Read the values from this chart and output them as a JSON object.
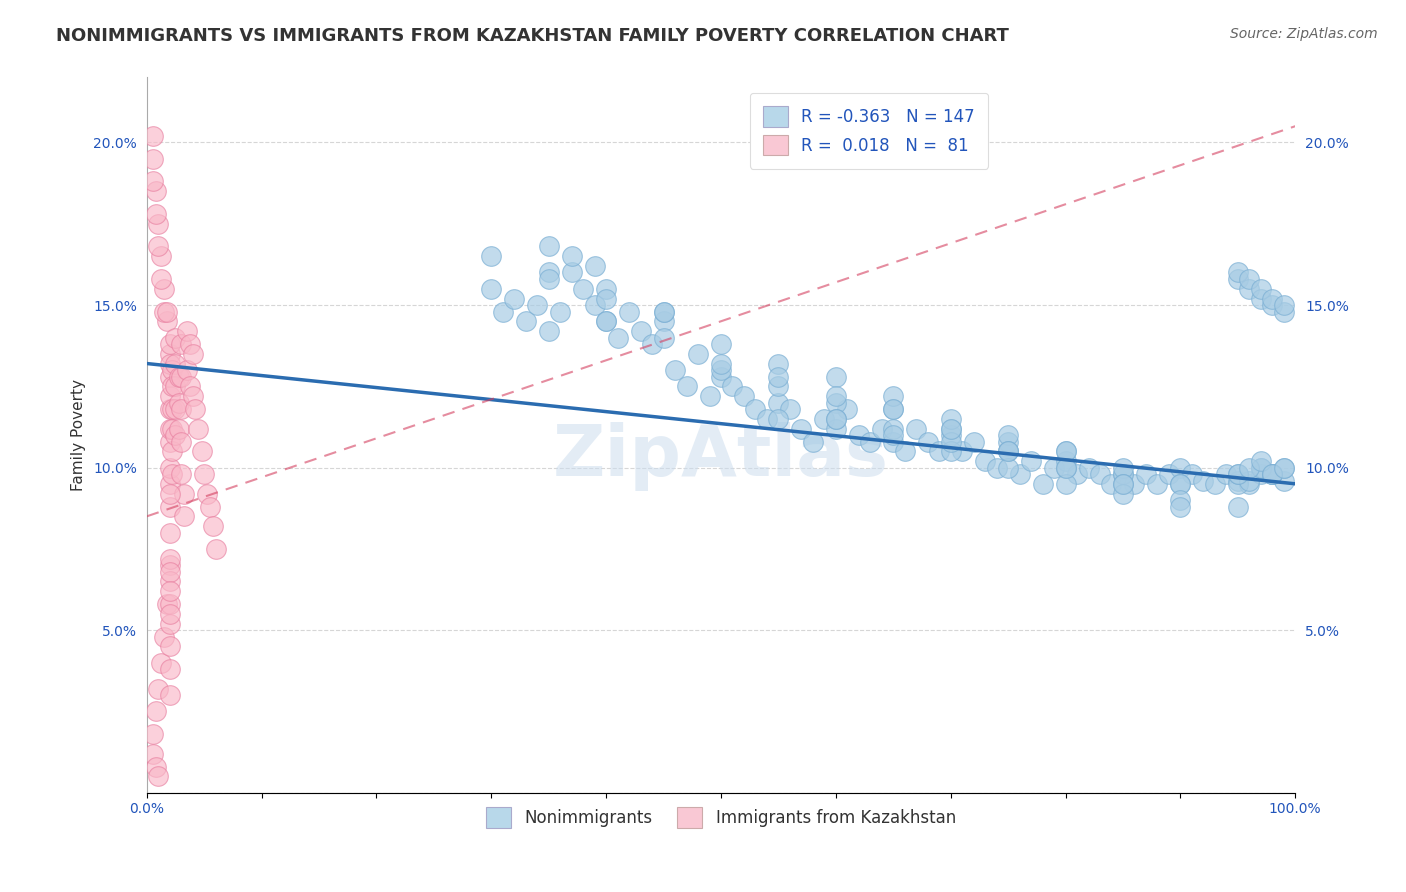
{
  "title": "NONIMMIGRANTS VS IMMIGRANTS FROM KAZAKHSTAN FAMILY POVERTY CORRELATION CHART",
  "source": "Source: ZipAtlas.com",
  "ylabel": "Family Poverty",
  "xlim": [
    0,
    1.0
  ],
  "ylim": [
    0,
    0.22
  ],
  "xticks": [
    0.0,
    0.1,
    0.2,
    0.3,
    0.4,
    0.5,
    0.6,
    0.7,
    0.8,
    0.9,
    1.0
  ],
  "xticklabels": [
    "0.0%",
    "",
    "",
    "",
    "",
    "",
    "",
    "",
    "",
    "",
    "100.0%"
  ],
  "yticks": [
    0.0,
    0.05,
    0.1,
    0.15,
    0.2
  ],
  "yticklabels": [
    "",
    "5.0%",
    "10.0%",
    "15.0%",
    "20.0%"
  ],
  "r_nonimm": -0.363,
  "n_nonimm": 147,
  "r_imm": 0.018,
  "n_imm": 81,
  "blue_color": "#a8cce4",
  "blue_edge_color": "#7bafd4",
  "blue_line_color": "#2b6cb0",
  "pink_color": "#f9b8c8",
  "pink_edge_color": "#e87fa0",
  "pink_line_color": "#d44060",
  "legend_blue_face": "#b8d8ea",
  "legend_pink_face": "#f9c8d4",
  "watermark": "ZipAtlas",
  "nonimm_x": [
    0.3,
    0.31,
    0.32,
    0.33,
    0.34,
    0.35,
    0.36,
    0.37,
    0.38,
    0.39,
    0.4,
    0.41,
    0.42,
    0.43,
    0.44,
    0.45,
    0.46,
    0.47,
    0.48,
    0.49,
    0.5,
    0.51,
    0.52,
    0.53,
    0.54,
    0.55,
    0.56,
    0.57,
    0.58,
    0.59,
    0.6,
    0.61,
    0.62,
    0.63,
    0.64,
    0.65,
    0.66,
    0.67,
    0.68,
    0.69,
    0.7,
    0.71,
    0.72,
    0.73,
    0.74,
    0.75,
    0.76,
    0.77,
    0.78,
    0.79,
    0.8,
    0.81,
    0.82,
    0.83,
    0.84,
    0.85,
    0.86,
    0.87,
    0.88,
    0.89,
    0.9,
    0.91,
    0.92,
    0.93,
    0.94,
    0.95,
    0.96,
    0.97,
    0.98,
    0.99,
    0.35,
    0.4,
    0.45,
    0.5,
    0.55,
    0.6,
    0.65,
    0.7,
    0.75,
    0.8,
    0.85,
    0.9,
    0.95,
    0.97,
    0.98,
    0.99,
    0.95,
    0.96,
    0.97,
    0.98,
    0.3,
    0.35,
    0.4,
    0.45,
    0.5,
    0.55,
    0.6,
    0.65,
    0.7,
    0.75,
    0.8,
    0.85,
    0.9,
    0.55,
    0.6,
    0.65,
    0.7,
    0.75,
    0.8,
    0.85,
    0.6,
    0.65,
    0.7,
    0.75,
    0.8,
    0.85,
    0.9,
    0.95,
    0.4,
    0.45,
    0.5,
    0.55,
    0.6,
    0.65,
    0.7,
    0.75,
    0.8,
    0.85,
    0.9,
    0.95,
    0.96,
    0.97,
    0.98,
    0.99,
    0.95,
    0.96,
    0.97,
    0.98,
    0.99,
    0.95,
    0.96,
    0.97,
    0.98,
    0.99,
    0.35,
    0.37,
    0.39
  ],
  "nonimm_y": [
    0.155,
    0.148,
    0.152,
    0.145,
    0.15,
    0.142,
    0.148,
    0.16,
    0.155,
    0.15,
    0.145,
    0.14,
    0.148,
    0.142,
    0.138,
    0.145,
    0.13,
    0.125,
    0.135,
    0.122,
    0.128,
    0.125,
    0.122,
    0.118,
    0.115,
    0.12,
    0.118,
    0.112,
    0.108,
    0.115,
    0.112,
    0.118,
    0.11,
    0.108,
    0.112,
    0.108,
    0.105,
    0.112,
    0.108,
    0.105,
    0.11,
    0.105,
    0.108,
    0.102,
    0.1,
    0.105,
    0.098,
    0.102,
    0.095,
    0.1,
    0.102,
    0.098,
    0.1,
    0.098,
    0.095,
    0.098,
    0.095,
    0.098,
    0.095,
    0.098,
    0.1,
    0.098,
    0.096,
    0.095,
    0.098,
    0.096,
    0.095,
    0.098,
    0.098,
    0.096,
    0.16,
    0.155,
    0.148,
    0.13,
    0.125,
    0.12,
    0.118,
    0.112,
    0.108,
    0.105,
    0.098,
    0.095,
    0.095,
    0.1,
    0.098,
    0.1,
    0.098,
    0.096,
    0.1,
    0.098,
    0.165,
    0.158,
    0.152,
    0.148,
    0.138,
    0.132,
    0.128,
    0.122,
    0.115,
    0.11,
    0.105,
    0.1,
    0.095,
    0.115,
    0.115,
    0.112,
    0.105,
    0.105,
    0.1,
    0.095,
    0.115,
    0.11,
    0.108,
    0.1,
    0.095,
    0.092,
    0.09,
    0.088,
    0.145,
    0.14,
    0.132,
    0.128,
    0.122,
    0.118,
    0.112,
    0.105,
    0.1,
    0.095,
    0.088,
    0.098,
    0.1,
    0.102,
    0.098,
    0.1,
    0.158,
    0.155,
    0.152,
    0.15,
    0.148,
    0.16,
    0.158,
    0.155,
    0.152,
    0.15,
    0.168,
    0.165,
    0.162
  ],
  "imm_x": [
    0.005,
    0.005,
    0.008,
    0.008,
    0.01,
    0.01,
    0.012,
    0.012,
    0.015,
    0.015,
    0.018,
    0.018,
    0.02,
    0.02,
    0.02,
    0.02,
    0.02,
    0.02,
    0.02,
    0.02,
    0.02,
    0.02,
    0.02,
    0.02,
    0.02,
    0.02,
    0.02,
    0.02,
    0.02,
    0.02,
    0.02,
    0.02,
    0.02,
    0.02,
    0.02,
    0.022,
    0.022,
    0.022,
    0.022,
    0.022,
    0.022,
    0.025,
    0.025,
    0.025,
    0.025,
    0.025,
    0.028,
    0.028,
    0.028,
    0.03,
    0.03,
    0.03,
    0.03,
    0.03,
    0.032,
    0.032,
    0.035,
    0.035,
    0.038,
    0.038,
    0.04,
    0.04,
    0.042,
    0.045,
    0.048,
    0.05,
    0.052,
    0.055,
    0.058,
    0.06,
    0.005,
    0.005,
    0.005,
    0.008,
    0.008,
    0.01,
    0.01,
    0.012,
    0.015,
    0.018,
    0.02
  ],
  "imm_y": [
    0.195,
    0.018,
    0.185,
    0.025,
    0.175,
    0.032,
    0.165,
    0.04,
    0.155,
    0.048,
    0.145,
    0.058,
    0.135,
    0.07,
    0.08,
    0.088,
    0.095,
    0.1,
    0.108,
    0.112,
    0.118,
    0.122,
    0.128,
    0.132,
    0.138,
    0.065,
    0.058,
    0.052,
    0.045,
    0.038,
    0.03,
    0.072,
    0.068,
    0.062,
    0.055,
    0.13,
    0.125,
    0.118,
    0.112,
    0.105,
    0.098,
    0.14,
    0.132,
    0.125,
    0.118,
    0.11,
    0.128,
    0.12,
    0.112,
    0.138,
    0.128,
    0.118,
    0.108,
    0.098,
    0.092,
    0.085,
    0.142,
    0.13,
    0.138,
    0.125,
    0.135,
    0.122,
    0.118,
    0.112,
    0.105,
    0.098,
    0.092,
    0.088,
    0.082,
    0.075,
    0.202,
    0.188,
    0.012,
    0.178,
    0.008,
    0.168,
    0.005,
    0.158,
    0.148,
    0.148,
    0.092
  ],
  "blue_line_y_start": 0.132,
  "blue_line_y_end": 0.095,
  "pink_line_y_start": 0.085,
  "pink_line_y_end": 0.205,
  "background_color": "#ffffff",
  "grid_color": "#cccccc",
  "title_fontsize": 13,
  "axis_label_fontsize": 11,
  "tick_fontsize": 10,
  "legend_fontsize": 12,
  "source_fontsize": 10
}
